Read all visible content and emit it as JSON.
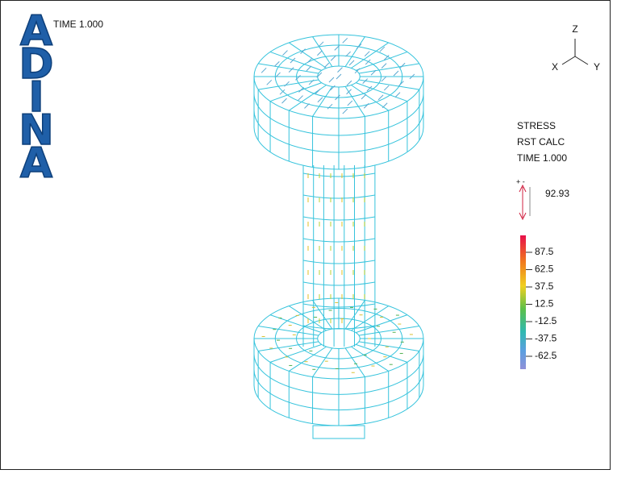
{
  "logo": [
    "A",
    "D",
    "I",
    "N",
    "A"
  ],
  "time_label": "TIME 1.000",
  "axes": {
    "z": "Z",
    "x": "X",
    "y": "Y"
  },
  "legend": {
    "quantity": "STRESS",
    "result": "RST CALC",
    "time": "TIME 1.000",
    "arrow_max": "92.93",
    "ticks": [
      "87.5",
      "62.5",
      "37.5",
      "12.5",
      "-12.5",
      "-37.5",
      "-62.5"
    ]
  }
}
